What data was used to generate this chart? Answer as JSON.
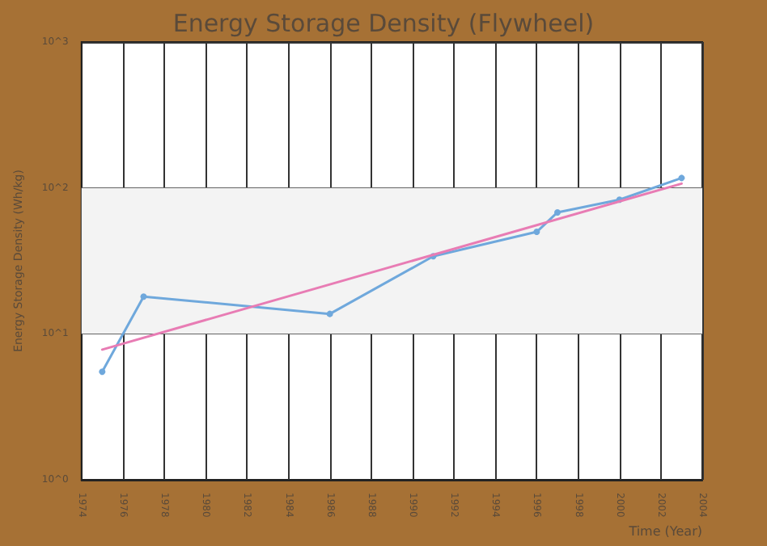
{
  "chart_data": {
    "type": "line",
    "title": "Energy Storage Density (Flywheel)",
    "xlabel": "Time (Year)",
    "ylabel": "Energy Storage Density (Wh/kg)",
    "log": "y",
    "grid": true,
    "marker": "circle",
    "line_style": "solid",
    "xlim": [
      1974,
      2004
    ],
    "xticks": [
      1974,
      1976,
      1978,
      1980,
      1982,
      1984,
      1986,
      1988,
      1990,
      1992,
      1994,
      1996,
      1998,
      2000,
      2002,
      2004
    ],
    "ylim": [
      1,
      1000
    ],
    "yticks": [
      {
        "value": 1,
        "label": "10^0"
      },
      {
        "value": 10,
        "label": "10^1"
      },
      {
        "value": 100,
        "label": "10^2"
      },
      {
        "value": 1000,
        "label": "10^3"
      }
    ],
    "bands": [
      {
        "axis": "y",
        "from": 10,
        "to": 100,
        "color": "#f3f3f3"
      }
    ],
    "series": [
      {
        "color": "#6fa8dc",
        "x": [
          1975,
          1977,
          1986,
          1991,
          1996,
          1997,
          2000,
          2003
        ],
        "values": [
          5.5,
          18,
          13.7,
          34,
          50,
          68,
          83,
          117
        ]
      },
      {
        "type": "line",
        "color": "#e87cb4",
        "marker": "none",
        "x": [
          1975,
          2003
        ],
        "values": [
          7.8,
          107
        ]
      }
    ]
  }
}
